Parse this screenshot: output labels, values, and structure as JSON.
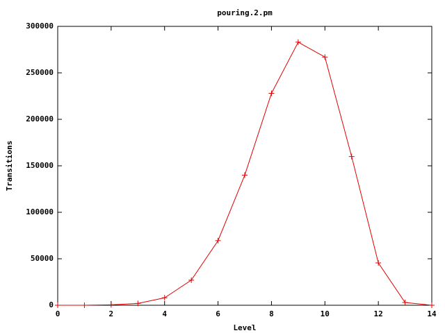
{
  "chart_data": {
    "type": "line",
    "title": "pouring.2.pm",
    "x_label": "Level",
    "y_label": "Transitions",
    "x": [
      0,
      1,
      2,
      3,
      4,
      5,
      6,
      7,
      8,
      9,
      10,
      11,
      12,
      13,
      14
    ],
    "series": [
      {
        "color": "#e00000",
        "values": [
          0,
          0,
          500,
          2000,
          8000,
          27000,
          69500,
          140000,
          228000,
          283000,
          267000,
          160000,
          45500,
          3000,
          0
        ]
      }
    ],
    "xlim": [
      0,
      14
    ],
    "xticks": [
      0,
      2,
      4,
      6,
      8,
      10,
      12,
      14
    ],
    "ylim": [
      0,
      300000
    ],
    "yticks": [
      0,
      50000,
      100000,
      150000,
      200000,
      250000,
      300000
    ],
    "grid": false
  }
}
